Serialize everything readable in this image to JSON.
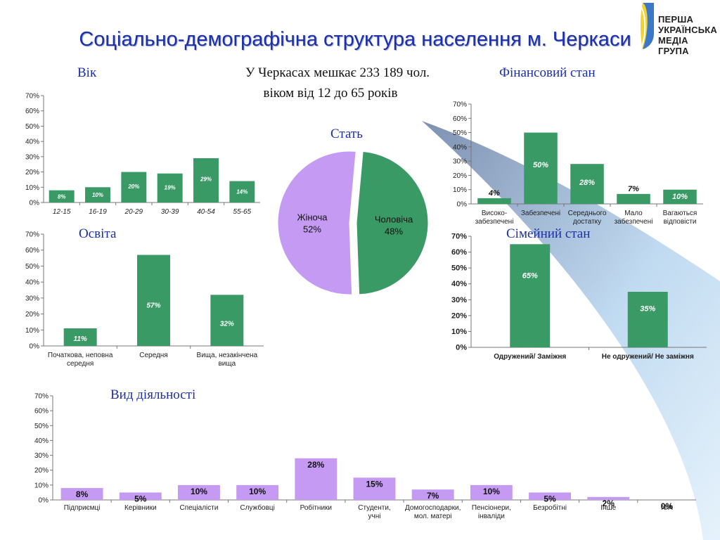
{
  "title": "Соціально-демографічна структура населення м. Черкаси",
  "logo_lines": [
    "ПЕРША",
    "УКРАЇНСЬКА",
    "МЕДІА ГРУПА"
  ],
  "population_note_line1": "У Черкасах мешкає 233 189 чол.",
  "population_note_line2": "віком від 12 до 65 років",
  "colors": {
    "green": "#3a9a66",
    "purple": "#c59af2",
    "title_blue": "#1b2fa8"
  },
  "chart_data": [
    {
      "id": "age",
      "type": "bar",
      "title": "Вік",
      "categories": [
        "12-15",
        "16-19",
        "20-29",
        "30-39",
        "40-54",
        "55-65"
      ],
      "values": [
        8,
        10,
        20,
        19,
        29,
        14
      ],
      "value_labels": [
        "8%",
        "10%",
        "20%",
        "19%",
        "29%",
        "14%"
      ],
      "yticks": [
        "0%",
        "10%",
        "20%",
        "30%",
        "40%",
        "50%",
        "60%",
        "70%"
      ],
      "ylim": [
        0,
        70
      ]
    },
    {
      "id": "education",
      "type": "bar",
      "title": "Освіта",
      "categories": [
        [
          "Початкова, неповна",
          "середня"
        ],
        [
          "Середня"
        ],
        [
          "Вища, незакінчена",
          "вища"
        ]
      ],
      "values": [
        11,
        57,
        32
      ],
      "value_labels": [
        "11%",
        "57%",
        "32%"
      ],
      "yticks": [
        "0%",
        "10%",
        "20%",
        "30%",
        "40%",
        "50%",
        "60%",
        "70%"
      ],
      "ylim": [
        0,
        70
      ]
    },
    {
      "id": "gender",
      "type": "pie",
      "title": "Стать",
      "slices": [
        {
          "label": "Жіноча",
          "value": 52,
          "value_label": "52%"
        },
        {
          "label": "Чоловіча",
          "value": 48,
          "value_label": "48%"
        }
      ]
    },
    {
      "id": "finance",
      "type": "bar",
      "title": "Фінансовий стан",
      "categories": [
        [
          "Високо-",
          "забезпечені"
        ],
        [
          "Забезпечені"
        ],
        [
          "Середнього",
          "достатку"
        ],
        [
          "Мало",
          "забезпечені"
        ],
        [
          "Вагаються",
          "відповісти"
        ]
      ],
      "values": [
        4,
        50,
        28,
        7,
        10
      ],
      "value_labels": [
        "4%",
        "50%",
        "28%",
        "7%",
        "10%"
      ],
      "yticks": [
        "0%",
        "10%",
        "20%",
        "30%",
        "40%",
        "50%",
        "60%",
        "70%"
      ],
      "ylim": [
        0,
        70
      ]
    },
    {
      "id": "family",
      "type": "bar",
      "title": "Сімейний стан",
      "categories": [
        [
          "Одружений/ Заміжня"
        ],
        [
          "Не одружений/ Не заміжня"
        ]
      ],
      "values": [
        65,
        35
      ],
      "value_labels": [
        "65%",
        "35%"
      ],
      "yticks": [
        "0%",
        "10%",
        "20%",
        "30%",
        "40%",
        "50%",
        "60%",
        "70%"
      ],
      "ylim": [
        0,
        70
      ]
    },
    {
      "id": "activity",
      "type": "bar",
      "title": "Вид діяльності",
      "categories": [
        [
          "Підприємці"
        ],
        [
          "Керівники"
        ],
        [
          "Спеціалісти"
        ],
        [
          "Службовці"
        ],
        [
          "Робітники"
        ],
        [
          "Студенти,",
          "учні"
        ],
        [
          "Домогосподарки,",
          "мол. матері"
        ],
        [
          "Пенсіонери,",
          "інваліди"
        ],
        [
          "Безробітні"
        ],
        [
          "Інше"
        ],
        [
          "N/A"
        ]
      ],
      "values": [
        8,
        5,
        10,
        10,
        28,
        15,
        7,
        10,
        5,
        2,
        0
      ],
      "value_labels": [
        "8%",
        "5%",
        "10%",
        "10%",
        "28%",
        "15%",
        "7%",
        "10%",
        "5%",
        "2%",
        "0%"
      ],
      "yticks": [
        "0%",
        "10%",
        "20%",
        "30%",
        "40%",
        "50%",
        "60%",
        "70%"
      ],
      "ylim": [
        0,
        70
      ]
    }
  ]
}
